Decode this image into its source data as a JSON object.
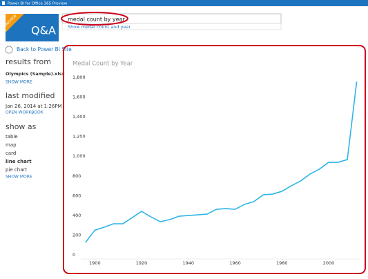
{
  "header": {
    "title": "Power BI for Office 365 Preview"
  },
  "logo": {
    "badge": "PREVIEW",
    "label": "Q&A"
  },
  "search": {
    "query": "medal count by year",
    "suggestion": "Show medal count and year"
  },
  "sidebar": {
    "back_link": "Back to Power BI Site",
    "results_heading": "results from",
    "source": "Olympics (Sample).xlsx",
    "show_more": "SHOW MORE",
    "modified_heading": "last modified",
    "modified": "Jan 26, 2014 at 1:26PM",
    "open_workbook": "OPEN WORKBOOK",
    "show_as_heading": "show as",
    "show_as": [
      "table",
      "map",
      "card",
      "line chart",
      "pie chart"
    ],
    "show_more_views": "SHOW MORE"
  },
  "chart_data": {
    "type": "line",
    "title": "Medal Count by Year",
    "color": "#2cb5e8",
    "x": [
      1896,
      1900,
      1904,
      1908,
      1912,
      1920,
      1924,
      1928,
      1932,
      1936,
      1948,
      1952,
      1956,
      1960,
      1964,
      1968,
      1972,
      1976,
      1980,
      1984,
      1988,
      1992,
      1996,
      2000,
      2004,
      2008,
      2012
    ],
    "values": [
      125,
      250,
      280,
      315,
      315,
      441,
      385,
      336,
      357,
      392,
      413,
      462,
      469,
      462,
      511,
      539,
      609,
      616,
      644,
      700,
      749,
      819,
      868,
      938,
      938,
      966,
      1757
    ],
    "xlim": [
      1894,
      2013
    ],
    "xticks": [
      1900,
      1920,
      1940,
      1960,
      1980,
      2000
    ],
    "ylim": [
      0,
      1800
    ],
    "yticks": [
      0,
      200,
      400,
      600,
      800,
      {
        "value": 1000,
        "label": "1,000"
      },
      {
        "value": 1200,
        "label": "1,200"
      },
      {
        "value": 1400,
        "label": "1,400"
      },
      {
        "value": 1600,
        "label": "1,600"
      },
      {
        "value": 1800,
        "label": "1,800"
      }
    ]
  }
}
